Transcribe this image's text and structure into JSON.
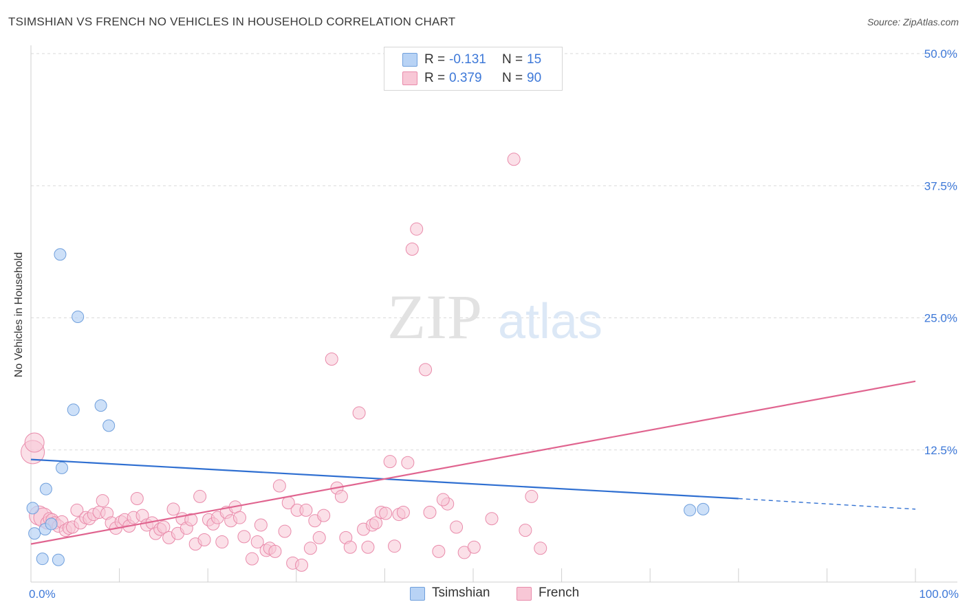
{
  "title": "TSIMSHIAN VS FRENCH NO VEHICLES IN HOUSEHOLD CORRELATION CHART",
  "source": "Source: ZipAtlas.com",
  "watermark": {
    "zip": "ZIP",
    "atlas": "atlas"
  },
  "colors": {
    "tsimshian_fill": "#b8d3f5",
    "tsimshian_stroke": "#6f9fdc",
    "tsimshian_line": "#2f6fd1",
    "french_fill": "#f8c7d6",
    "french_stroke": "#e98aaa",
    "french_line": "#e0648f",
    "value_text": "#3d78d8",
    "grid": "#d9d9d9"
  },
  "legend": {
    "rows": [
      {
        "series": "Tsimshian",
        "r_label": "R =",
        "r_value": "-0.131",
        "n_label": "N =",
        "n_value": "15"
      },
      {
        "series": "French",
        "r_label": "R =",
        "r_value": "0.379",
        "n_label": "N =",
        "n_value": "90"
      }
    ]
  },
  "bottom_legend": {
    "tsimshian": "Tsimshian",
    "french": "French"
  },
  "chart_data": {
    "type": "scatter",
    "title": "TSIMSHIAN VS FRENCH NO VEHICLES IN HOUSEHOLD CORRELATION CHART",
    "xlabel": "",
    "ylabel": "No Vehicles in Household",
    "xlim": [
      0,
      100
    ],
    "ylim": [
      0,
      50
    ],
    "x_tick_labels": [
      "0.0%",
      "100.0%"
    ],
    "y_ticks": [
      12.5,
      25.0,
      37.5,
      50.0
    ],
    "y_tick_labels": [
      "12.5%",
      "25.0%",
      "37.5%",
      "50.0%"
    ],
    "grid": true,
    "series": [
      {
        "name": "Tsimshian",
        "r": -0.131,
        "n": 15,
        "points": [
          [
            0.2,
            7.0
          ],
          [
            0.4,
            4.6
          ],
          [
            1.3,
            2.2
          ],
          [
            1.6,
            5.0
          ],
          [
            1.7,
            8.8
          ],
          [
            2.3,
            5.5
          ],
          [
            3.1,
            2.1
          ],
          [
            3.3,
            31.0
          ],
          [
            3.5,
            10.8
          ],
          [
            4.8,
            16.3
          ],
          [
            5.3,
            25.1
          ],
          [
            7.9,
            16.7
          ],
          [
            8.8,
            14.8
          ],
          [
            74.5,
            6.8
          ],
          [
            76.0,
            6.9
          ]
        ],
        "trend": {
          "x0": 0,
          "y0": 11.6,
          "x1": 80,
          "y1": 7.9,
          "x_end": 100,
          "y_end": 6.9
        }
      },
      {
        "name": "French",
        "r": 0.379,
        "n": 90,
        "points": [
          [
            0.2,
            12.3
          ],
          [
            0.4,
            13.2
          ],
          [
            0.9,
            6.3
          ],
          [
            1.4,
            6.1
          ],
          [
            1.8,
            5.6
          ],
          [
            2.1,
            6.0
          ],
          [
            2.4,
            5.9
          ],
          [
            2.7,
            5.6
          ],
          [
            3.1,
            5.3
          ],
          [
            3.5,
            5.7
          ],
          [
            3.9,
            4.9
          ],
          [
            4.3,
            5.1
          ],
          [
            4.7,
            5.2
          ],
          [
            5.2,
            6.8
          ],
          [
            5.6,
            5.6
          ],
          [
            6.2,
            6.1
          ],
          [
            6.6,
            6.0
          ],
          [
            7.1,
            6.4
          ],
          [
            7.7,
            6.6
          ],
          [
            8.1,
            7.7
          ],
          [
            8.6,
            6.5
          ],
          [
            9.1,
            5.6
          ],
          [
            9.6,
            5.1
          ],
          [
            10.2,
            5.7
          ],
          [
            10.6,
            5.9
          ],
          [
            11.1,
            5.3
          ],
          [
            11.6,
            6.1
          ],
          [
            12.0,
            7.9
          ],
          [
            12.6,
            6.3
          ],
          [
            13.1,
            5.4
          ],
          [
            13.7,
            5.6
          ],
          [
            14.1,
            4.6
          ],
          [
            14.6,
            5.0
          ],
          [
            15.0,
            5.2
          ],
          [
            15.6,
            4.2
          ],
          [
            16.1,
            6.9
          ],
          [
            16.6,
            4.6
          ],
          [
            17.1,
            6.0
          ],
          [
            17.6,
            5.1
          ],
          [
            18.1,
            5.9
          ],
          [
            18.6,
            3.6
          ],
          [
            19.1,
            8.1
          ],
          [
            19.6,
            4.0
          ],
          [
            20.1,
            5.9
          ],
          [
            20.6,
            5.5
          ],
          [
            21.1,
            6.1
          ],
          [
            21.6,
            3.8
          ],
          [
            22.1,
            6.6
          ],
          [
            22.6,
            5.8
          ],
          [
            23.1,
            7.1
          ],
          [
            23.6,
            6.1
          ],
          [
            24.1,
            4.3
          ],
          [
            25.0,
            2.2
          ],
          [
            25.6,
            3.8
          ],
          [
            26.0,
            5.4
          ],
          [
            26.6,
            3.0
          ],
          [
            27.0,
            3.2
          ],
          [
            27.6,
            2.9
          ],
          [
            28.1,
            9.1
          ],
          [
            28.7,
            4.8
          ],
          [
            29.1,
            7.5
          ],
          [
            29.6,
            1.8
          ],
          [
            30.1,
            6.8
          ],
          [
            30.6,
            1.6
          ],
          [
            31.1,
            6.8
          ],
          [
            31.6,
            3.2
          ],
          [
            32.1,
            5.8
          ],
          [
            32.6,
            4.2
          ],
          [
            33.1,
            6.3
          ],
          [
            34.0,
            21.1
          ],
          [
            34.6,
            8.9
          ],
          [
            35.1,
            8.1
          ],
          [
            35.6,
            4.2
          ],
          [
            36.1,
            3.3
          ],
          [
            37.1,
            16.0
          ],
          [
            37.6,
            5.0
          ],
          [
            38.1,
            3.3
          ],
          [
            38.6,
            5.4
          ],
          [
            39.0,
            5.6
          ],
          [
            39.6,
            6.6
          ],
          [
            40.1,
            6.5
          ],
          [
            40.6,
            11.4
          ],
          [
            41.1,
            3.4
          ],
          [
            41.6,
            6.4
          ],
          [
            42.1,
            6.6
          ],
          [
            42.6,
            11.3
          ],
          [
            43.1,
            31.5
          ],
          [
            44.6,
            20.1
          ],
          [
            46.1,
            2.9
          ],
          [
            47.1,
            7.4
          ]
        ],
        "extra_points": [
          [
            43.6,
            33.4
          ],
          [
            54.6,
            40.0
          ],
          [
            46.6,
            7.8
          ],
          [
            45.1,
            6.6
          ],
          [
            49.0,
            2.8
          ],
          [
            50.1,
            3.3
          ],
          [
            55.9,
            4.9
          ],
          [
            57.6,
            3.2
          ],
          [
            56.6,
            8.1
          ],
          [
            52.1,
            6.0
          ],
          [
            48.1,
            5.2
          ]
        ],
        "trend": {
          "x0": 0,
          "y0": 3.6,
          "x1": 100,
          "y1": 19.0
        }
      }
    ]
  }
}
